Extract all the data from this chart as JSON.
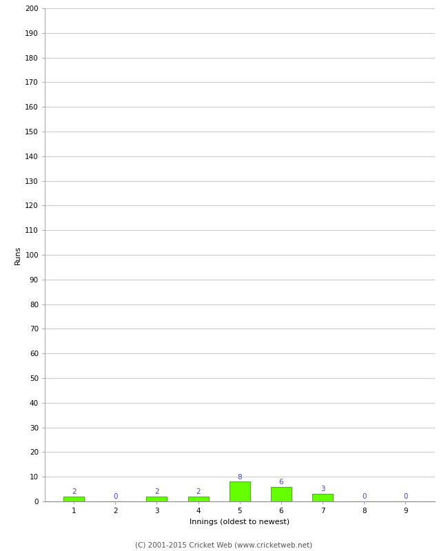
{
  "xlabel": "Innings (oldest to newest)",
  "ylabel": "Runs",
  "categories": [
    1,
    2,
    3,
    4,
    5,
    6,
    7,
    8,
    9
  ],
  "values": [
    2,
    0,
    2,
    2,
    8,
    6,
    3,
    0,
    0
  ],
  "bar_color": "#66ff00",
  "bar_edge_color": "#44bb00",
  "label_color": "#4444cc",
  "ylim": [
    0,
    200
  ],
  "yticks": [
    0,
    10,
    20,
    30,
    40,
    50,
    60,
    70,
    80,
    90,
    100,
    110,
    120,
    130,
    140,
    150,
    160,
    170,
    180,
    190,
    200
  ],
  "footer": "(C) 2001-2015 Cricket Web (www.cricketweb.net)",
  "background_color": "#ffffff",
  "grid_color": "#cccccc",
  "label_fontsize": 7.5,
  "axis_label_fontsize": 8,
  "tick_fontsize": 7.5,
  "footer_fontsize": 7.5
}
